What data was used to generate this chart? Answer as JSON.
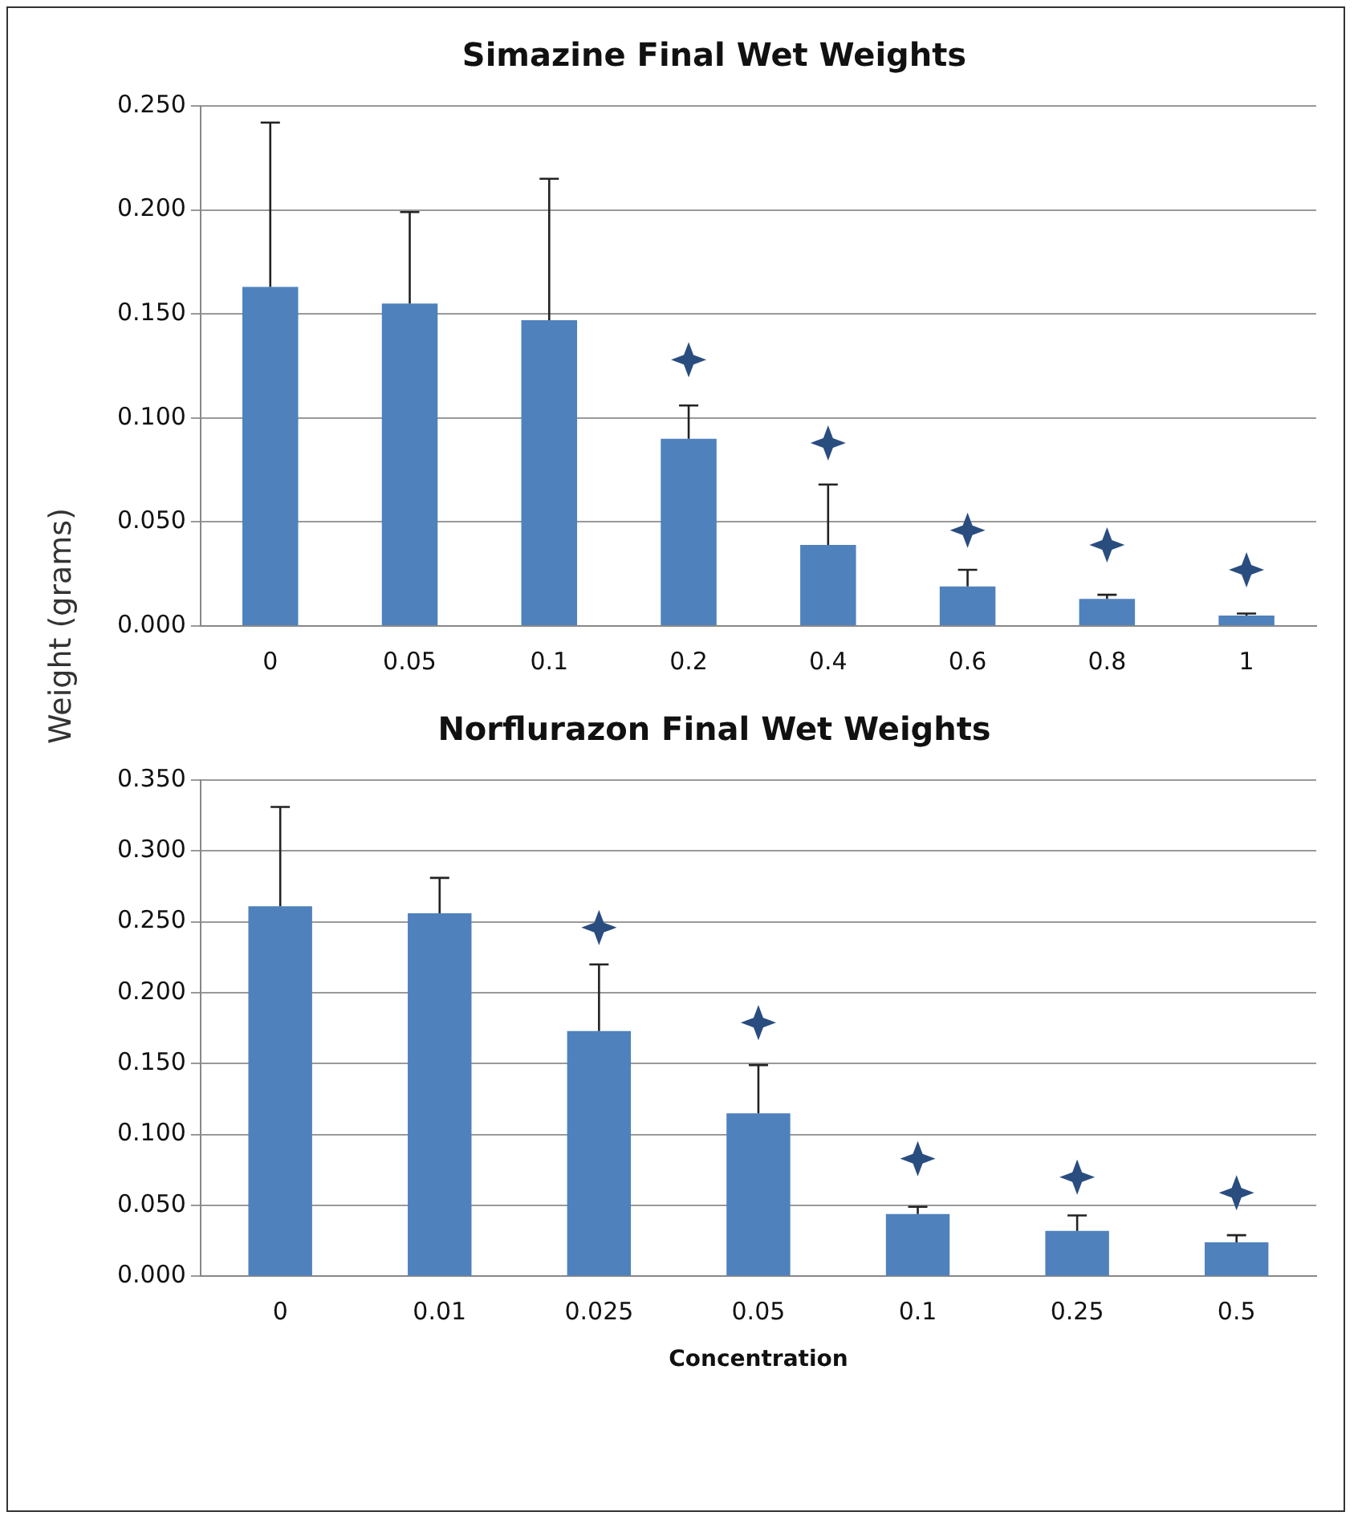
{
  "chart_data": [
    {
      "type": "bar",
      "title": "Simazine Final Wet Weights",
      "ylabel": "Weight (grams)",
      "categories": [
        "0",
        "0.05",
        "0.1",
        "0.2",
        "0.4",
        "0.6",
        "0.8",
        "1"
      ],
      "series": [
        {
          "color": "#4f81bd",
          "values": [
            0.163,
            0.155,
            0.147,
            0.09,
            0.039,
            0.019,
            0.013,
            0.005
          ],
          "errors": [
            [
              0.163,
              0.242
            ],
            [
              0.155,
              0.199
            ],
            [
              0.147,
              0.215
            ],
            [
              0.09,
              0.106
            ],
            [
              0.039,
              0.068
            ],
            [
              0.019,
              0.027
            ],
            [
              0.013,
              0.015
            ],
            [
              0.005,
              0.006
            ]
          ]
        },
        {
          "type": "scatter",
          "marker": "star",
          "color": "#2a4d80",
          "x": [
            "0.2",
            "0.4",
            "0.6",
            "0.8",
            "1"
          ],
          "values": [
            0.128,
            0.088,
            0.046,
            0.039,
            0.027
          ]
        }
      ],
      "ylim": [
        0,
        0.25
      ],
      "yticks": [
        {
          "value": 0,
          "label": "0.000"
        },
        {
          "value": 0.05,
          "label": "0.050"
        },
        {
          "value": 0.1,
          "label": "0.100"
        },
        {
          "value": 0.15,
          "label": "0.150"
        },
        {
          "value": 0.2,
          "label": "0.200"
        },
        {
          "value": 0.25,
          "label": "0.250"
        }
      ],
      "grid": "y",
      "legend": false
    },
    {
      "type": "bar",
      "title": "Norflurazon Final Wet Weights",
      "xlabel": "Concentration",
      "categories": [
        "0",
        "0.01",
        "0.025",
        "0.05",
        "0.1",
        "0.25",
        "0.5"
      ],
      "series": [
        {
          "color": "#4f81bd",
          "values": [
            0.261,
            0.256,
            0.173,
            0.115,
            0.044,
            0.032,
            0.024
          ],
          "errors": [
            [
              0.261,
              0.331
            ],
            [
              0.256,
              0.281
            ],
            [
              0.173,
              0.22
            ],
            [
              0.115,
              0.149
            ],
            [
              0.044,
              0.049
            ],
            [
              0.032,
              0.043
            ],
            [
              0.024,
              0.029
            ]
          ]
        },
        {
          "type": "scatter",
          "marker": "star",
          "color": "#2a4d80",
          "x": [
            "0.025",
            "0.05",
            "0.1",
            "0.25",
            "0.5"
          ],
          "values": [
            0.246,
            0.179,
            0.083,
            0.07,
            0.059
          ]
        }
      ],
      "ylim": [
        0,
        0.35
      ],
      "yticks": [
        {
          "value": 0,
          "label": "0.000"
        },
        {
          "value": 0.05,
          "label": "0.050"
        },
        {
          "value": 0.1,
          "label": "0.100"
        },
        {
          "value": 0.15,
          "label": "0.150"
        },
        {
          "value": 0.2,
          "label": "0.200"
        },
        {
          "value": 0.25,
          "label": "0.250"
        },
        {
          "value": 0.3,
          "label": "0.300"
        },
        {
          "value": 0.35,
          "label": "0.350"
        }
      ],
      "grid": "y",
      "legend": false
    }
  ]
}
